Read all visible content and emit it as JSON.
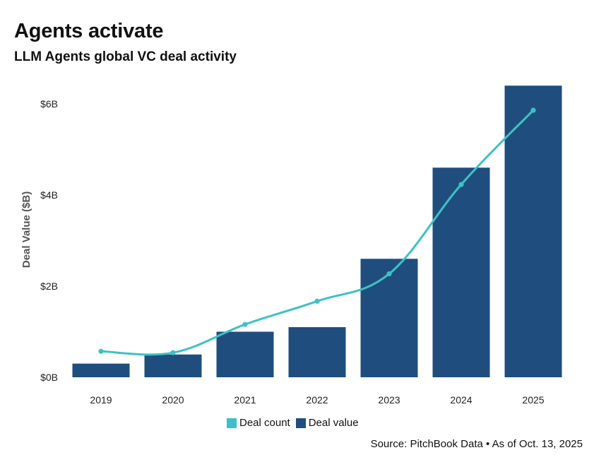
{
  "header": {
    "title": "Agents activate",
    "subtitle": "LLM Agents global VC deal activity"
  },
  "footer": {
    "source": "Source: PitchBook Data • As of Oct. 13, 2025"
  },
  "legend": {
    "items": [
      {
        "label": "Deal count",
        "color": "#3ec1c6"
      },
      {
        "label": "Deal value",
        "color": "#1f4e7e"
      }
    ]
  },
  "chart_data": {
    "type": "bar",
    "title": "Agents activate",
    "subtitle": "LLM Agents global VC deal activity",
    "categories": [
      "2019",
      "2020",
      "2021",
      "2022",
      "2023",
      "2024",
      "2025"
    ],
    "ylabel": "Deal Value ($B)",
    "yticks": [
      {
        "value": 0,
        "label": "$0B"
      },
      {
        "value": 2,
        "label": "$2B"
      },
      {
        "value": 4,
        "label": "$4B"
      },
      {
        "value": 6,
        "label": "$6B"
      }
    ],
    "ylim": [
      0,
      6.6
    ],
    "grid": false,
    "legend_position": "bottom",
    "series": [
      {
        "name": "Deal value",
        "type": "bar",
        "color": "#1f4e7e",
        "values": [
          0.3,
          0.5,
          1.0,
          1.1,
          2.6,
          4.6,
          6.4
        ]
      },
      {
        "name": "Deal count",
        "type": "line",
        "color": "#3ec1c6",
        "values": [
          0.57,
          0.54,
          1.16,
          1.67,
          2.27,
          4.23,
          5.86
        ]
      }
    ]
  }
}
